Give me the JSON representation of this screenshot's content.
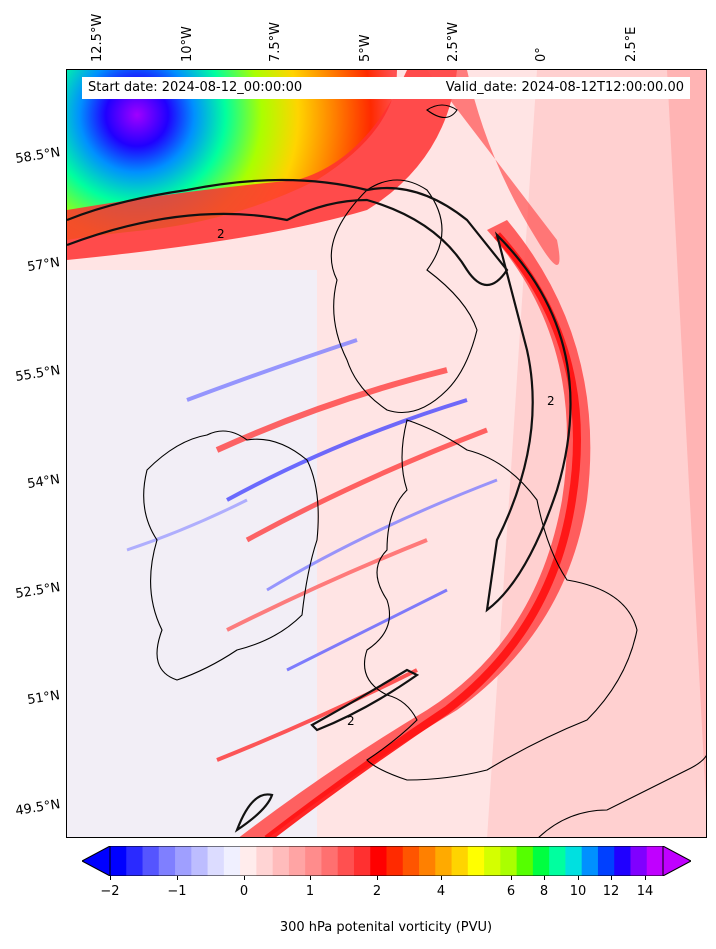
{
  "map": {
    "start_date": "Start date: 2024-08-12_00:00:00",
    "valid_date": "Valid_date: 2024-08-12T12:00:00.00",
    "lon_labels": [
      "12.5°W",
      "10°W",
      "7.5°W",
      "5°W",
      "2.5°W",
      "0°",
      "2.5°E"
    ],
    "lat_labels": [
      "58.5°N",
      "57°N",
      "55.5°N",
      "54°N",
      "52.5°N",
      "51°N",
      "49.5°N"
    ],
    "contour_label": "2"
  },
  "colorbar": {
    "label": "300 hPa potenital vorticity (PVU)",
    "ticks": [
      "−2",
      "−1",
      "0",
      "1",
      "2",
      "4",
      "6",
      "8",
      "10",
      "12",
      "14"
    ],
    "colors": [
      "#0000ff",
      "#2a2aff",
      "#5555ff",
      "#7f7fff",
      "#9f9fff",
      "#bdbdff",
      "#dcdcff",
      "#f0f0ff",
      "#ffecec",
      "#ffd4d4",
      "#ffbcbc",
      "#ffa4a4",
      "#ff8c8c",
      "#ff7070",
      "#ff5050",
      "#ff3030",
      "#ff0000",
      "#ff2a00",
      "#ff5500",
      "#ff8000",
      "#ffaa00",
      "#ffd400",
      "#ffff00",
      "#d4ff00",
      "#aaff00",
      "#55ff00",
      "#00ff40",
      "#00ff9f",
      "#00e0e0",
      "#0090ff",
      "#0040ff",
      "#2000ff",
      "#8000ff",
      "#c000ff"
    ],
    "under_color": "#0000ff",
    "over_color": "#c000ff"
  }
}
